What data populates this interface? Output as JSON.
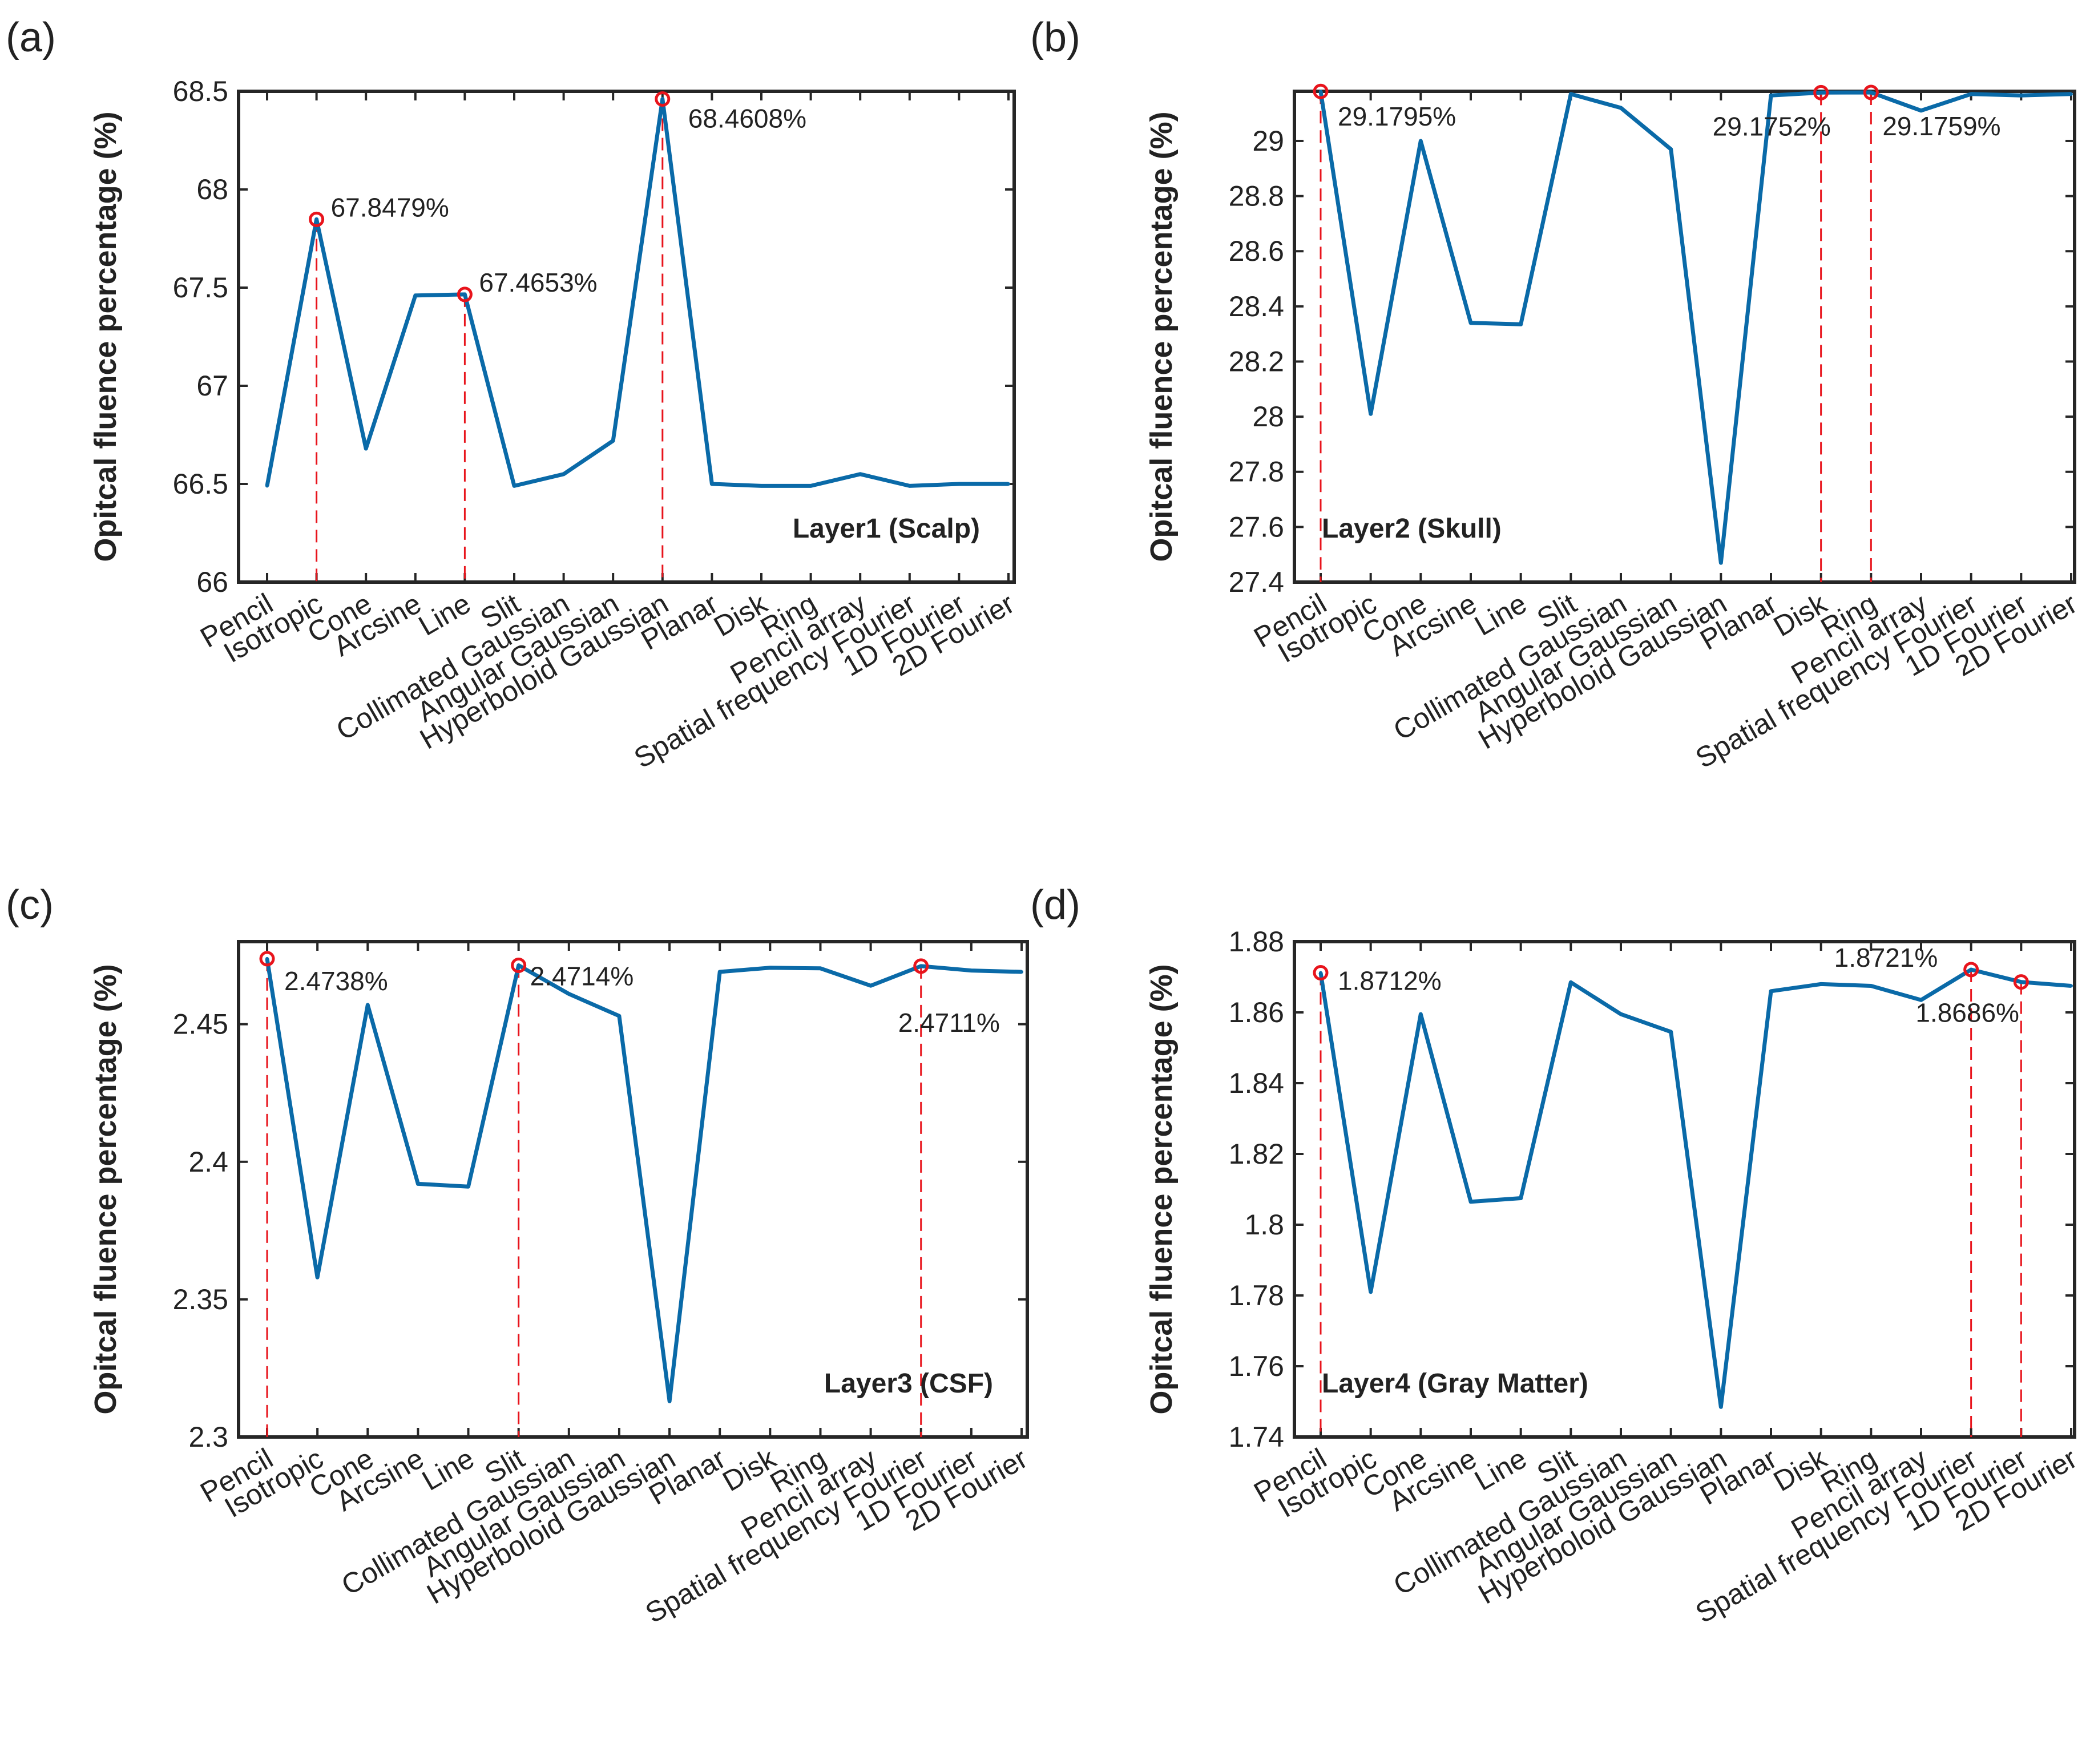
{
  "figure": {
    "ylabel": "Opitcal fluence percentage (%)",
    "categories": [
      "Pencil",
      "Isotropic",
      "Cone",
      "Arcsine",
      "Line",
      "Slit",
      "Collimated Gaussian",
      "Angular Gaussian",
      "Hyperboloid Gaussian",
      "Planar",
      "Disk",
      "Ring",
      "Pencil array",
      "Spatial frequency Fourier",
      "1D Fourier",
      "2D Fourier"
    ],
    "line_color": "#0a6aa8",
    "marker_color": "#e8141c",
    "drop_color": "#e8141c"
  },
  "chart_data": [
    {
      "panel": "(a)",
      "type": "line",
      "title": "Layer1 (Scalp)",
      "categories": [
        "Pencil",
        "Isotropic",
        "Cone",
        "Arcsine",
        "Line",
        "Slit",
        "Collimated Gaussian",
        "Angular Gaussian",
        "Hyperboloid Gaussian",
        "Planar",
        "Disk",
        "Ring",
        "Pencil array",
        "Spatial frequency Fourier",
        "1D Fourier",
        "2D Fourier"
      ],
      "values": [
        66.49,
        67.8479,
        66.68,
        67.46,
        67.4653,
        66.49,
        66.55,
        66.72,
        68.4608,
        66.5,
        66.49,
        66.49,
        66.55,
        66.49,
        66.5,
        66.5
      ],
      "ylabel": "Opitcal fluence percentage (%)",
      "ylim": [
        66,
        68.5
      ],
      "yticks": [
        66,
        66.5,
        67,
        67.5,
        68,
        68.5
      ],
      "ytick_labels": [
        "66",
        "66.5",
        "67",
        "67.5",
        "68",
        "68.5"
      ],
      "highlights": [
        {
          "index": 1,
          "label": "67.8479%",
          "dx": 25,
          "dy": -5
        },
        {
          "index": 4,
          "label": "67.4653%",
          "dx": 25,
          "dy": -5
        },
        {
          "index": 8,
          "label": "68.4608%",
          "dx": 45,
          "dy": 50
        }
      ],
      "label_pos": "bottom-right"
    },
    {
      "panel": "(b)",
      "type": "line",
      "title": "Layer2 (Skull)",
      "categories": [
        "Pencil",
        "Isotropic",
        "Cone",
        "Arcsine",
        "Line",
        "Slit",
        "Collimated Gaussian",
        "Angular Gaussian",
        "Hyperboloid Gaussian",
        "Planar",
        "Disk",
        "Ring",
        "Pencil array",
        "Spatial frequency Fourier",
        "1D Fourier",
        "2D Fourier"
      ],
      "values": [
        29.1795,
        28.01,
        29.0,
        28.34,
        28.335,
        29.17,
        29.12,
        28.97,
        27.47,
        29.165,
        29.1752,
        29.1759,
        29.11,
        29.17,
        29.165,
        29.17
      ],
      "ylabel": "Opitcal fluence percentage (%)",
      "ylim": [
        27.4,
        29.18
      ],
      "yticks": [
        27.4,
        27.6,
        27.8,
        28,
        28.2,
        28.4,
        28.6,
        28.8,
        29
      ],
      "ytick_labels": [
        "27.4",
        "27.6",
        "27.8",
        "28",
        "28.2",
        "28.4",
        "28.6",
        "28.8",
        "29"
      ],
      "highlights": [
        {
          "index": 0,
          "label": "29.1795%",
          "dx": 30,
          "dy": 60
        },
        {
          "index": 10,
          "label": "29.1752%",
          "dx": -190,
          "dy": 75
        },
        {
          "index": 11,
          "label": "29.1759%",
          "dx": 20,
          "dy": 75
        }
      ],
      "label_pos": "bottom-left"
    },
    {
      "panel": "(c)",
      "type": "line",
      "title": "Layer3 (CSF)",
      "categories": [
        "Pencil",
        "Isotropic",
        "Cone",
        "Arcsine",
        "Line",
        "Slit",
        "Collimated Gaussian",
        "Angular Gaussian",
        "Hyperboloid Gaussian",
        "Planar",
        "Disk",
        "Ring",
        "Pencil array",
        "Spatial frequency Fourier",
        "1D Fourier",
        "2D Fourier"
      ],
      "values": [
        2.4738,
        2.358,
        2.457,
        2.392,
        2.391,
        2.4714,
        2.461,
        2.453,
        2.313,
        2.469,
        2.4705,
        2.4703,
        2.464,
        2.4711,
        2.4695,
        2.469
      ],
      "ylabel": "Opitcal fluence percentage (%)",
      "ylim": [
        2.3,
        2.48
      ],
      "yticks": [
        2.3,
        2.35,
        2.4,
        2.45
      ],
      "ytick_labels": [
        "2.3",
        "2.35",
        "2.4",
        "2.45"
      ],
      "highlights": [
        {
          "index": 0,
          "label": "2.4738%",
          "dx": 30,
          "dy": 55
        },
        {
          "index": 5,
          "label": "2.4714%",
          "dx": 20,
          "dy": 35
        },
        {
          "index": 13,
          "label": "2.4711%",
          "dx": -40,
          "dy": 115
        }
      ],
      "label_pos": "bottom-right"
    },
    {
      "panel": "(d)",
      "type": "line",
      "title": "Layer4 (Gray Matter)",
      "categories": [
        "Pencil",
        "Isotropic",
        "Cone",
        "Arcsine",
        "Line",
        "Slit",
        "Collimated Gaussian",
        "Angular Gaussian",
        "Hyperboloid Gaussian",
        "Planar",
        "Disk",
        "Ring",
        "Pencil array",
        "Spatial frequency Fourier",
        "1D Fourier",
        "2D Fourier"
      ],
      "values": [
        1.8712,
        1.781,
        1.8595,
        1.8065,
        1.8075,
        1.8685,
        1.8595,
        1.8545,
        1.7485,
        1.866,
        1.868,
        1.8675,
        1.8635,
        1.8721,
        1.8686,
        1.8675
      ],
      "ylabel": "Opitcal fluence percentage (%)",
      "ylim": [
        1.74,
        1.88
      ],
      "yticks": [
        1.74,
        1.76,
        1.78,
        1.8,
        1.82,
        1.84,
        1.86,
        1.88
      ],
      "ytick_labels": [
        "1.74",
        "1.76",
        "1.78",
        "1.8",
        "1.82",
        "1.84",
        "1.86",
        "1.88"
      ],
      "highlights": [
        {
          "index": 0,
          "label": "1.8712%",
          "dx": 30,
          "dy": 30
        },
        {
          "index": 13,
          "label": "1.8721%",
          "dx": -240,
          "dy": -5
        },
        {
          "index": 14,
          "label": "1.8686%",
          "dx": -185,
          "dy": 70
        }
      ],
      "label_pos": "bottom-left"
    }
  ]
}
